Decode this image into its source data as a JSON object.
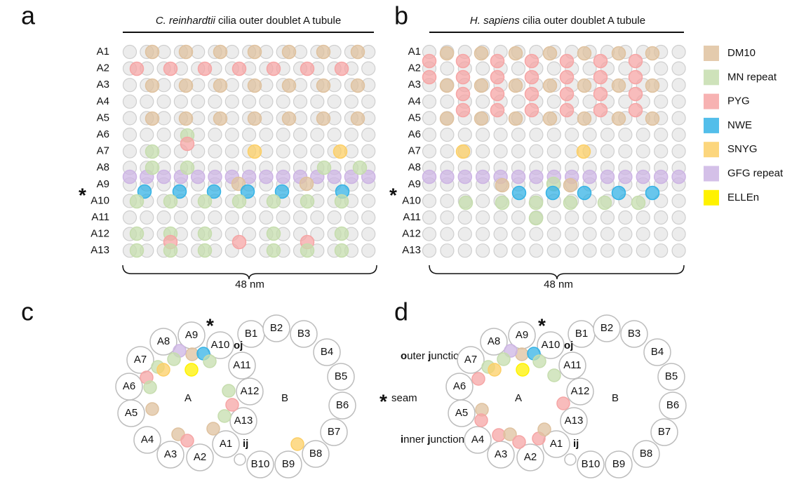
{
  "panels": [
    {
      "letter": "a",
      "species": "C. reinhardtii",
      "title": " cilia outer doublet A tubule",
      "scale": "48 nm",
      "seam": "*"
    },
    {
      "letter": "b",
      "species": "H. sapiens",
      "title": " cilia outer doublet A tubule",
      "scale": "48 nm",
      "seam": "*"
    },
    {
      "letter": "c",
      "seam": "*",
      "oj": "oj",
      "ij": "ij",
      "a": "A",
      "b": "B"
    },
    {
      "letter": "d",
      "seam": "*",
      "oj": "oj",
      "ij": "ij",
      "a": "A",
      "b": "B"
    }
  ],
  "row_labels": [
    "A1",
    "A2",
    "A3",
    "A4",
    "A5",
    "A6",
    "A7",
    "A8",
    "A9",
    "A10",
    "A11",
    "A12",
    "A13"
  ],
  "b_labels": [
    "B1",
    "B2",
    "B3",
    "B4",
    "B5",
    "B6",
    "B7",
    "B8",
    "B9",
    "B10"
  ],
  "legend": [
    {
      "label": "DM10",
      "color": "#dfc29f"
    },
    {
      "label": "MN repeat",
      "color": "#c6ddae"
    },
    {
      "label": "PYG",
      "color": "#f6a5a5"
    },
    {
      "label": "NWE",
      "color": "#35b3e6"
    },
    {
      "label": "SNYG",
      "color": "#fccf66"
    },
    {
      "label": "GFG repeat",
      "color": "#cdb5e4"
    },
    {
      "label": "ELLEn",
      "color": "#fff200"
    }
  ],
  "junction_key": {
    "outer": [
      "o",
      "uter ",
      "j",
      "unction"
    ],
    "seam_star": "*",
    "seam": " seam",
    "inner": [
      "i",
      "nner ",
      "j",
      "unction"
    ]
  }
}
